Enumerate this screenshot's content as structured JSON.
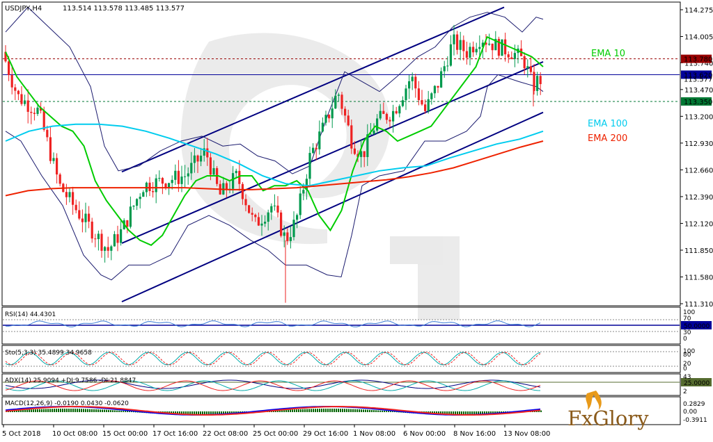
{
  "header": {
    "symbol": "USDJPY,H4",
    "ohlc": "113.514 113.578 113.485 113.577"
  },
  "colors": {
    "ema10": "#00cc00",
    "ema100": "#00ccee",
    "ema200": "#ee2200",
    "channel": "#000080",
    "bands": "#1a1a6e",
    "bull": "#00994d",
    "bear": "#ee2222",
    "resistance": "#990000",
    "support": "#007733",
    "current_line": "#000099"
  },
  "legend": {
    "ema10": "EMA 10",
    "ema100": "EMA 100",
    "ema200": "EMA 200"
  },
  "price_labels": {
    "resistance": "113.780",
    "current": "113.620",
    "current_ask": "113.577",
    "support": "113.350"
  },
  "panels": {
    "rsi": {
      "title": "RSI(14) 44.4301",
      "level_label": "50.0000",
      "ticks": [
        "100",
        "70",
        "30",
        "0"
      ]
    },
    "sto": {
      "title": "Sto(5,3,3) 35.4899 34.9658",
      "ticks": [
        "100",
        "80",
        "20",
        "0"
      ]
    },
    "adx": {
      "title": "ADX(14) 25.9094 +DI:9.7586 -DI:21.8847",
      "level_label": "25.0000",
      "ticks": [
        "43",
        "2"
      ]
    },
    "macd": {
      "title": "MACD(12,26,9) -0.0190 0.0430 -0.0620",
      "ticks": [
        "0.2829",
        "0.00",
        "-0.3911"
      ]
    }
  },
  "logo": {
    "text": "FxGlory"
  },
  "chart_data": {
    "type": "candlestick",
    "title": "USDJPY,H4",
    "y_ticks": [
      "114.275",
      "114.005",
      "113.740",
      "113.470",
      "113.200",
      "112.930",
      "112.660",
      "112.390",
      "112.120",
      "111.850",
      "111.580",
      "111.310"
    ],
    "y_tick_values": [
      114.275,
      114.005,
      113.74,
      113.47,
      113.2,
      112.93,
      112.66,
      112.39,
      112.12,
      111.85,
      111.58,
      111.31
    ],
    "ylim": [
      111.31,
      114.275
    ],
    "x_ticks": [
      "5 Oct 2018",
      "10 Oct 08:00",
      "15 Oct 00:00",
      "17 Oct 16:00",
      "22 Oct 08:00",
      "25 Oct 00:00",
      "29 Oct 16:00",
      "1 Nov 08:00",
      "6 Nov 00:00",
      "8 Nov 16:00",
      "13 Nov 08:00"
    ],
    "levels": {
      "resistance": 113.78,
      "current": 113.62,
      "support": 113.35
    },
    "series": [
      {
        "name": "EMA 10",
        "values": [
          113.85,
          113.6,
          113.45,
          113.3,
          113.2,
          113.1,
          113.05,
          112.9,
          112.55,
          112.35,
          112.2,
          112.05,
          111.95,
          111.9,
          112.0,
          112.2,
          112.4,
          112.55,
          112.6,
          112.6,
          112.55,
          112.6,
          112.6,
          112.45,
          112.5,
          112.5,
          112.55,
          112.45,
          112.2,
          112.05,
          112.25,
          112.65,
          112.95,
          113.1,
          113.05,
          112.95,
          113.0,
          113.05,
          113.1,
          113.25,
          113.4,
          113.55,
          113.7,
          114.0,
          113.95,
          113.9,
          113.85,
          113.8,
          113.7
        ]
      },
      {
        "name": "EMA 100",
        "values": [
          112.95,
          113.05,
          113.1,
          113.12,
          113.12,
          113.1,
          113.05,
          112.98,
          112.9,
          112.82,
          112.72,
          112.6,
          112.52,
          112.5,
          112.55,
          112.6,
          112.65,
          112.68,
          112.7,
          112.78,
          112.85,
          112.92,
          112.97,
          113.05
        ]
      },
      {
        "name": "EMA 200",
        "values": [
          112.4,
          112.45,
          112.47,
          112.48,
          112.48,
          112.48,
          112.48,
          112.48,
          112.48,
          112.47,
          112.46,
          112.46,
          112.47,
          112.48,
          112.5,
          112.52,
          112.54,
          112.56,
          112.59,
          112.63,
          112.68,
          112.75,
          112.82,
          112.89,
          112.95
        ]
      }
    ],
    "grid": false,
    "legend_position": "right"
  }
}
